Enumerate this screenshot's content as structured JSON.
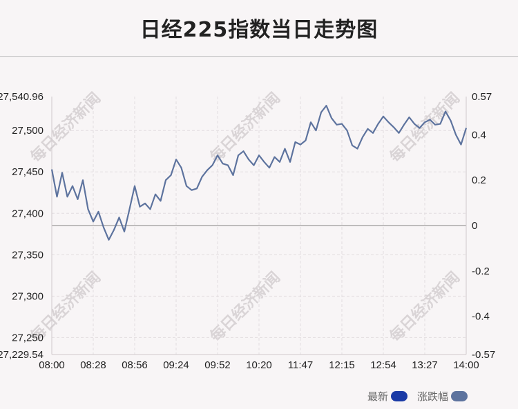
{
  "page": {
    "title": "日经225指数当日走势图",
    "watermark": "每日经济新闻"
  },
  "legend": [
    {
      "label": "最新",
      "color": "#1a3aa6"
    },
    {
      "label": "涨跌幅",
      "color": "#5d739e"
    }
  ],
  "chart_data": {
    "type": "line",
    "title": "日经225指数当日走势图",
    "x_ticks": [
      "08:00",
      "08:28",
      "08:56",
      "09:24",
      "09:52",
      "10:20",
      "11:47",
      "12:15",
      "12:54",
      "13:27",
      "14:00"
    ],
    "y_left_ticks": [
      "27,540.96",
      "27,500",
      "27,450",
      "27,400",
      "27,350",
      "27,300",
      "27,250",
      "27,229.54"
    ],
    "y_right_ticks": [
      "0.57",
      "0.4",
      "0.2",
      "0",
      "-0.2",
      "-0.4",
      "-0.57"
    ],
    "ylim": [
      27229.54,
      27540.96
    ],
    "y_right_lim": [
      -0.57,
      0.57
    ],
    "baseline": 27385.25,
    "line_color": "#5d739e",
    "grid": true,
    "series": [
      {
        "values": [
          27453,
          27420,
          27449,
          27420,
          27433,
          27417,
          27440,
          27405,
          27390,
          27402,
          27383,
          27368,
          27380,
          27395,
          27378,
          27405,
          27433,
          27408,
          27412,
          27405,
          27423,
          27415,
          27440,
          27446,
          27465,
          27455,
          27433,
          27428,
          27430,
          27444,
          27452,
          27458,
          27470,
          27460,
          27458,
          27446,
          27470,
          27475,
          27465,
          27458,
          27470,
          27462,
          27455,
          27468,
          27462,
          27478,
          27462,
          27486,
          27483,
          27488,
          27510,
          27500,
          27522,
          27530,
          27515,
          27507,
          27508,
          27500,
          27482,
          27478,
          27492,
          27502,
          27497,
          27508,
          27517,
          27510,
          27504,
          27497,
          27507,
          27516,
          27508,
          27503,
          27510,
          27513,
          27507,
          27508,
          27523,
          27512,
          27495,
          27483,
          27503
        ]
      }
    ]
  }
}
